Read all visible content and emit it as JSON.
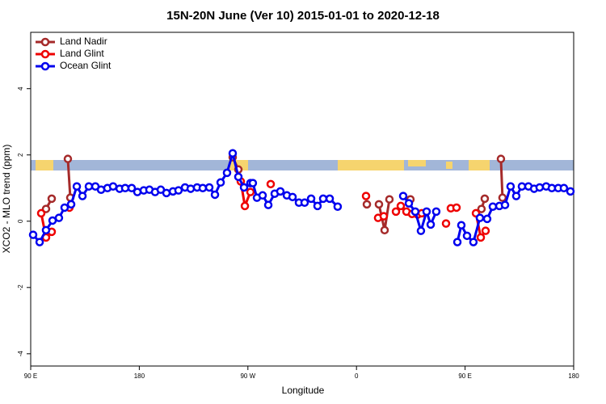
{
  "chart_data": {
    "type": "line",
    "title": "15N-20N June (Ver 10)   2015-01-01 to 2020-12-18",
    "x_label": "Longitude",
    "y_label": "XCO2 - MLO trend (ppm)",
    "xlim": [
      90,
      540
    ],
    "ylim": [
      -4.37,
      5.7
    ],
    "xticks": [
      {
        "value": 90,
        "label": "90 E"
      },
      {
        "value": 180,
        "label": "180"
      },
      {
        "value": 270,
        "label": "90 W"
      },
      {
        "value": 360,
        "label": "0"
      },
      {
        "value": 450,
        "label": "90 E"
      },
      {
        "value": 540,
        "label": "180"
      }
    ],
    "yticks": [
      -4,
      -2,
      0,
      2,
      4
    ],
    "legend": "top-left",
    "series": [
      {
        "name": "Land Nadir",
        "color": "#a52a2a",
        "x": [
          102.7,
          107.4,
          null,
          120.8,
          122.8,
          null,
          257.4,
          262.1,
          null,
          368.6,
          null,
          378.6,
          383.3,
          387.3,
          null,
          404.7,
          null,
          463.6,
          466.3,
          null,
          479.7,
          481
        ],
        "values": [
          0.37,
          0.68,
          null,
          1.88,
          0.71,
          null,
          1.93,
          1.56,
          null,
          0.51,
          null,
          0.51,
          -0.27,
          0.66,
          null,
          0.66,
          null,
          0.37,
          0.68,
          null,
          1.88,
          0.71
        ]
      },
      {
        "name": "Land Glint",
        "color": "#ee0000",
        "x": [
          98.7,
          102.7,
          107.4,
          null,
          122.1,
          null,
          264.1,
          267.5,
          272.1,
          null,
          288.9,
          null,
          367.9,
          null,
          377.9,
          382.6,
          null,
          392.7,
          396.7,
          401.4,
          406.1,
          410.7,
          414.1,
          null,
          434.2,
          null,
          438.2,
          442.9,
          null,
          459,
          463,
          467
        ],
        "values": [
          0.24,
          -0.49,
          -0.32,
          null,
          0.41,
          null,
          1.2,
          0.46,
          0.88,
          null,
          1.12,
          null,
          0.76,
          null,
          0.1,
          0.15,
          null,
          0.29,
          0.46,
          0.29,
          0.22,
          0.2,
          0.24,
          null,
          -0.07,
          null,
          0.39,
          0.41,
          null,
          0.24,
          -0.49,
          -0.29
        ]
      },
      {
        "name": "Ocean Glint",
        "color": "#0000ee",
        "x": [
          92,
          97.4,
          102.7,
          108.1,
          113.4,
          118.1,
          123.5,
          128.2,
          132.9,
          138.2,
          143.6,
          148.3,
          153.6,
          158.3,
          163.7,
          168.3,
          173.7,
          178.4,
          183.7,
          188.4,
          193.1,
          197.8,
          202.5,
          207.9,
          212.5,
          217.9,
          222.6,
          227.9,
          232.6,
          238,
          242.7,
          247.4,
          252.7,
          257.4,
          262.1,
          266.8,
          272.1,
          274.1,
          277.5,
          282.2,
          286.9,
          292.2,
          296.9,
          302.3,
          307,
          312.3,
          317,
          322.4,
          327.7,
          332.4,
          337.8,
          344.4,
          null,
          398.7,
          403.4,
          408.7,
          413.4,
          418.1,
          421.5,
          426.1,
          null,
          443.6,
          446.9,
          451.6,
          456.9,
          462.3,
          468.3,
          473,
          478.4,
          483.1,
          487.7,
          492.4,
          497.1,
          502.5,
          507.2,
          511.8,
          517.2,
          521.9,
          527.2,
          531.9,
          537.3
        ],
        "values": [
          -0.41,
          -0.63,
          -0.27,
          0.02,
          0.1,
          0.41,
          0.51,
          1.05,
          0.76,
          1.05,
          1.05,
          0.95,
          1,
          1.05,
          0.98,
          1,
          1,
          0.88,
          0.93,
          0.95,
          0.88,
          0.95,
          0.85,
          0.9,
          0.93,
          1.02,
          0.98,
          1.02,
          1,
          1.02,
          0.8,
          1.17,
          1.46,
          2.05,
          1.34,
          1.02,
          1.15,
          1.15,
          0.71,
          0.78,
          0.49,
          0.83,
          0.9,
          0.78,
          0.73,
          0.56,
          0.56,
          0.68,
          0.46,
          0.68,
          0.68,
          0.44,
          null,
          0.76,
          0.54,
          0.29,
          -0.29,
          0.29,
          -0.1,
          0.29,
          null,
          -0.63,
          -0.12,
          -0.44,
          -0.63,
          0.1,
          0.07,
          0.44,
          0.46,
          0.49,
          1.05,
          0.76,
          1.05,
          1.05,
          0.98,
          1.02,
          1.05,
          1,
          1,
          1,
          0.9
        ]
      }
    ]
  }
}
